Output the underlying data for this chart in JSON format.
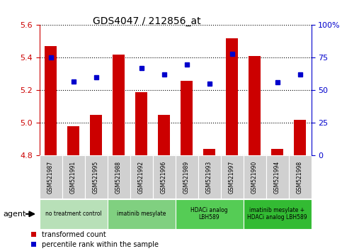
{
  "title": "GDS4047 / 212856_at",
  "samples": [
    "GSM521987",
    "GSM521991",
    "GSM521995",
    "GSM521988",
    "GSM521992",
    "GSM521996",
    "GSM521989",
    "GSM521993",
    "GSM521997",
    "GSM521990",
    "GSM521994",
    "GSM521998"
  ],
  "bar_values": [
    5.47,
    4.98,
    5.05,
    5.42,
    5.19,
    5.05,
    5.26,
    4.84,
    5.52,
    5.41,
    4.84,
    5.02
  ],
  "scatter_values": [
    75,
    57,
    60,
    null,
    67,
    62,
    70,
    55,
    78,
    null,
    56,
    62
  ],
  "ylim": [
    4.8,
    5.6
  ],
  "yticks": [
    4.8,
    5.0,
    5.2,
    5.4,
    5.6
  ],
  "y2lim": [
    0,
    100
  ],
  "y2ticks": [
    0,
    25,
    50,
    75,
    100
  ],
  "bar_color": "#cc0000",
  "scatter_color": "#0000cc",
  "bar_bottom": 4.8,
  "grid_color": "#000000",
  "groups": [
    {
      "label": "no treatment control",
      "start": 0,
      "end": 3,
      "color": "#b8e0b8"
    },
    {
      "label": "imatinib mesylate",
      "start": 3,
      "end": 6,
      "color": "#80d080"
    },
    {
      "label": "HDACi analog\nLBH589",
      "start": 6,
      "end": 9,
      "color": "#55cc55"
    },
    {
      "label": "imatinib mesylate +\nHDACi analog LBH589",
      "start": 9,
      "end": 12,
      "color": "#33bb33"
    }
  ],
  "left_axis_color": "#cc0000",
  "right_axis_color": "#0000cc",
  "plot_bg_color": "#ffffff",
  "sample_box_color": "#d0d0d0",
  "fig_bg_color": "#ffffff"
}
